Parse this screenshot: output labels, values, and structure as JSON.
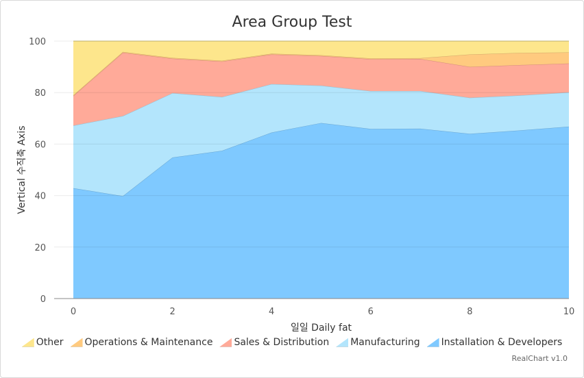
{
  "chart_data": {
    "type": "area",
    "stacked": true,
    "percent": true,
    "title": "Area Group Test",
    "xlabel": "일일 Daily fat",
    "ylabel": "Vertical 수직축 Axis",
    "x": [
      0,
      1,
      2,
      3,
      4,
      5,
      6,
      7,
      8,
      9,
      10
    ],
    "xlim": [
      0,
      10
    ],
    "xticks": [
      0,
      2,
      4,
      6,
      8,
      10
    ],
    "ylim": [
      0,
      100
    ],
    "yticks": [
      0,
      20,
      40,
      60,
      80,
      100
    ],
    "grid": true,
    "legend_position": "bottom",
    "series": [
      {
        "name": "Installation & Developers",
        "color": "#7fc9ff",
        "values": [
          42.9,
          39.8,
          54.8,
          57.4,
          64.5,
          68.2,
          65.9,
          66.0,
          64.0,
          65.3,
          66.8
        ]
      },
      {
        "name": "Manufacturing",
        "color": "#b3e5fc",
        "values": [
          24.3,
          31.1,
          25.0,
          20.9,
          18.8,
          14.5,
          14.7,
          14.6,
          14.0,
          13.6,
          13.3
        ]
      },
      {
        "name": "Sales & Distribution",
        "color": "#ffaa99",
        "values": [
          11.5,
          24.6,
          13.4,
          13.8,
          11.5,
          11.5,
          12.4,
          12.5,
          12.0,
          11.8,
          11.2
        ]
      },
      {
        "name": "Operations & Maintenance",
        "color": "#ffca7f",
        "values": [
          0.3,
          0.3,
          0.3,
          0.3,
          0.3,
          0.3,
          0.3,
          0.3,
          4.8,
          4.7,
          4.3
        ]
      },
      {
        "name": "Other",
        "color": "#fde68c",
        "values": [
          21.0,
          4.2,
          6.5,
          7.6,
          4.9,
          5.5,
          6.7,
          6.6,
          5.2,
          4.6,
          4.4
        ]
      }
    ],
    "legend_order": [
      "Other",
      "Operations & Maintenance",
      "Sales & Distribution",
      "Manufacturing",
      "Installation & Developers"
    ]
  },
  "credit": "RealChart v1.0"
}
